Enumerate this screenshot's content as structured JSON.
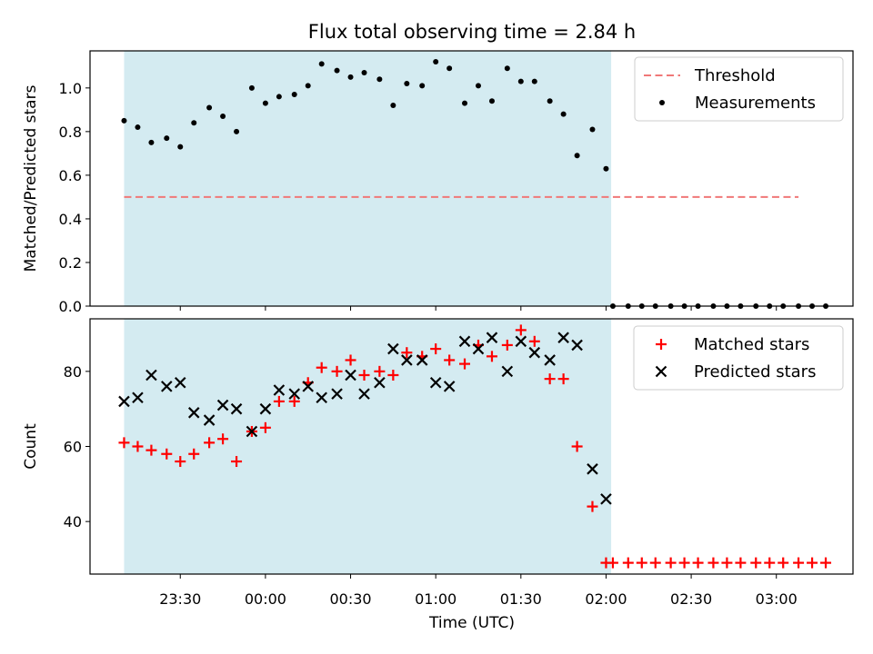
{
  "chart_data": {
    "type": "scatter",
    "title": "Flux total observing time = 2.84 h",
    "xlabel": "Time (UTC)",
    "x_unit": "hours",
    "x_ticks": [
      {
        "value": 23.5,
        "label": "23:30"
      },
      {
        "value": 24.0,
        "label": "00:00"
      },
      {
        "value": 24.5,
        "label": "00:30"
      },
      {
        "value": 25.0,
        "label": "01:00"
      },
      {
        "value": 25.5,
        "label": "01:30"
      },
      {
        "value": 26.0,
        "label": "02:00"
      },
      {
        "value": 26.5,
        "label": "02:30"
      },
      {
        "value": 27.0,
        "label": "03:00"
      }
    ],
    "xlim": [
      22.97,
      27.45
    ],
    "observing_window": {
      "start": 23.17,
      "end": 26.03,
      "color": "#d4ebf1"
    },
    "panels": [
      {
        "ylabel": "Matched/Predicted stars",
        "ylim": [
          0,
          1.17
        ],
        "y_ticks": [
          0.0,
          0.2,
          0.4,
          0.6,
          0.8,
          1.0
        ],
        "y_tick_labels": [
          "0.0",
          "0.2",
          "0.4",
          "0.6",
          "0.8",
          "1.0"
        ],
        "legend": {
          "placement": "top-right"
        },
        "series": [
          {
            "name": "Threshold",
            "kind": "dashed-line",
            "color": "#f07878",
            "x": [
              23.17,
              27.13
            ],
            "y": [
              0.5,
              0.5
            ]
          },
          {
            "name": "Measurements",
            "kind": "dot",
            "color": "#000000",
            "x": [
              23.17,
              23.25,
              23.33,
              23.42,
              23.5,
              23.58,
              23.67,
              23.75,
              23.83,
              23.92,
              24.0,
              24.08,
              24.17,
              24.25,
              24.33,
              24.42,
              24.5,
              24.58,
              24.67,
              24.75,
              24.83,
              24.92,
              25.0,
              25.08,
              25.17,
              25.25,
              25.33,
              25.42,
              25.5,
              25.58,
              25.67,
              25.75,
              25.83,
              25.92,
              26.0,
              26.04,
              26.13,
              26.21,
              26.29,
              26.38,
              26.46,
              26.54,
              26.63,
              26.71,
              26.79,
              26.88,
              26.96,
              27.04,
              27.13,
              27.21,
              27.29
            ],
            "y": [
              0.85,
              0.82,
              0.75,
              0.77,
              0.73,
              0.84,
              0.91,
              0.87,
              0.8,
              1.0,
              0.93,
              0.96,
              0.97,
              1.01,
              1.11,
              1.08,
              1.05,
              1.07,
              1.04,
              0.92,
              1.02,
              1.01,
              1.12,
              1.09,
              0.93,
              1.01,
              0.94,
              1.09,
              1.03,
              1.03,
              0.94,
              0.88,
              0.69,
              0.81,
              0.63,
              0.0,
              0.0,
              0.0,
              0.0,
              0.0,
              0.0,
              0.0,
              0.0,
              0.0,
              0.0,
              0.0,
              0.0,
              0.0,
              0.0,
              0.0,
              0.0
            ]
          }
        ]
      },
      {
        "ylabel": "Count",
        "ylim": [
          26,
          94
        ],
        "y_ticks": [
          40,
          60,
          80
        ],
        "y_tick_labels": [
          "40",
          "60",
          "80"
        ],
        "legend": {
          "placement": "top-right"
        },
        "series": [
          {
            "name": "Matched stars",
            "kind": "plus",
            "color": "#ff0000",
            "x": [
              23.17,
              23.25,
              23.33,
              23.42,
              23.5,
              23.58,
              23.67,
              23.75,
              23.83,
              23.92,
              24.0,
              24.08,
              24.17,
              24.25,
              24.33,
              24.42,
              24.5,
              24.58,
              24.67,
              24.75,
              24.83,
              24.92,
              25.0,
              25.08,
              25.17,
              25.25,
              25.33,
              25.42,
              25.5,
              25.58,
              25.67,
              25.75,
              25.83,
              25.92,
              26.0,
              26.04,
              26.13,
              26.21,
              26.29,
              26.38,
              26.46,
              26.54,
              26.63,
              26.71,
              26.79,
              26.88,
              26.96,
              27.04,
              27.13,
              27.21,
              27.29
            ],
            "y": [
              61,
              60,
              59,
              58,
              56,
              58,
              61,
              62,
              56,
              64,
              65,
              72,
              72,
              77,
              81,
              80,
              83,
              79,
              80,
              79,
              85,
              84,
              86,
              83,
              82,
              87,
              84,
              87,
              91,
              88,
              78,
              78,
              60,
              44,
              29,
              29,
              29,
              29,
              29,
              29,
              29,
              29,
              29,
              29,
              29,
              29,
              29,
              29,
              29,
              29,
              29
            ]
          },
          {
            "name": "Predicted stars",
            "kind": "cross",
            "color": "#000000",
            "x": [
              23.17,
              23.25,
              23.33,
              23.42,
              23.5,
              23.58,
              23.67,
              23.75,
              23.83,
              23.92,
              24.0,
              24.08,
              24.17,
              24.25,
              24.33,
              24.42,
              24.5,
              24.58,
              24.67,
              24.75,
              24.83,
              24.92,
              25.0,
              25.08,
              25.17,
              25.25,
              25.33,
              25.42,
              25.5,
              25.58,
              25.67,
              25.75,
              25.83,
              25.92,
              26.0
            ],
            "y": [
              72,
              73,
              79,
              76,
              77,
              69,
              67,
              71,
              70,
              64,
              70,
              75,
              74,
              76,
              73,
              74,
              79,
              74,
              77,
              86,
              83,
              83,
              77,
              76,
              88,
              86,
              89,
              80,
              88,
              85,
              83,
              89,
              87,
              54,
              46
            ]
          }
        ]
      }
    ]
  }
}
